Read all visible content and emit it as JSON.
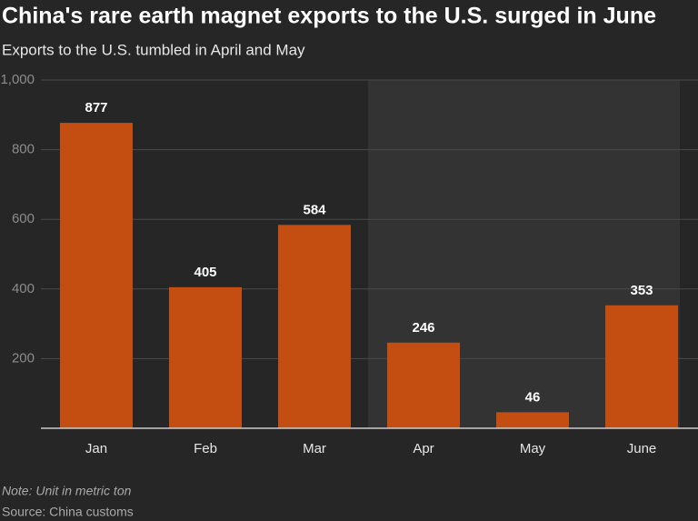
{
  "chart_data": {
    "type": "bar",
    "title": "China's rare earth magnet exports to the U.S. surged in June",
    "subtitle": "Exports to the U.S. tumbled in April and May",
    "categories": [
      "Jan",
      "Feb",
      "Mar",
      "Apr",
      "May",
      "June"
    ],
    "values": [
      877,
      405,
      584,
      246,
      46,
      353
    ],
    "color": "#c44d12",
    "ylim": [
      0,
      1000
    ],
    "yticks": [
      200,
      400,
      600,
      800,
      {
        "value": 1000,
        "label": "1,000"
      }
    ],
    "grid": true,
    "shade_from_index": 3,
    "note": "Note: Unit in metric ton",
    "source": "Source: China customs"
  }
}
